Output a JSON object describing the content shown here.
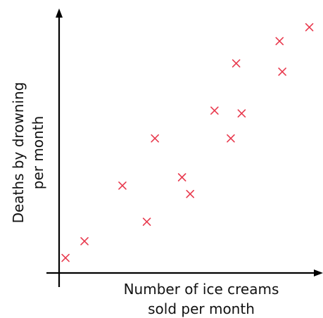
{
  "chart_data": {
    "type": "scatter",
    "title": "",
    "xlabel": [
      "Number of ice creams",
      "sold per month"
    ],
    "ylabel": [
      "Deaths by drowning",
      "per month"
    ],
    "xlim": [
      0,
      100
    ],
    "ylim": [
      0,
      100
    ],
    "axis_ticks": "none",
    "grid": false,
    "legend": "none",
    "marker": "x",
    "marker_color": "#e8394d",
    "series": [
      {
        "points": [
          {
            "x": 6,
            "y": 11
          },
          {
            "x": 13,
            "y": 17
          },
          {
            "x": 27,
            "y": 37
          },
          {
            "x": 36,
            "y": 24
          },
          {
            "x": 39,
            "y": 54
          },
          {
            "x": 49,
            "y": 40
          },
          {
            "x": 52,
            "y": 34
          },
          {
            "x": 61,
            "y": 64
          },
          {
            "x": 67,
            "y": 54
          },
          {
            "x": 69,
            "y": 81
          },
          {
            "x": 71,
            "y": 63
          },
          {
            "x": 85,
            "y": 89
          },
          {
            "x": 86,
            "y": 78
          },
          {
            "x": 96,
            "y": 94
          }
        ]
      }
    ]
  }
}
